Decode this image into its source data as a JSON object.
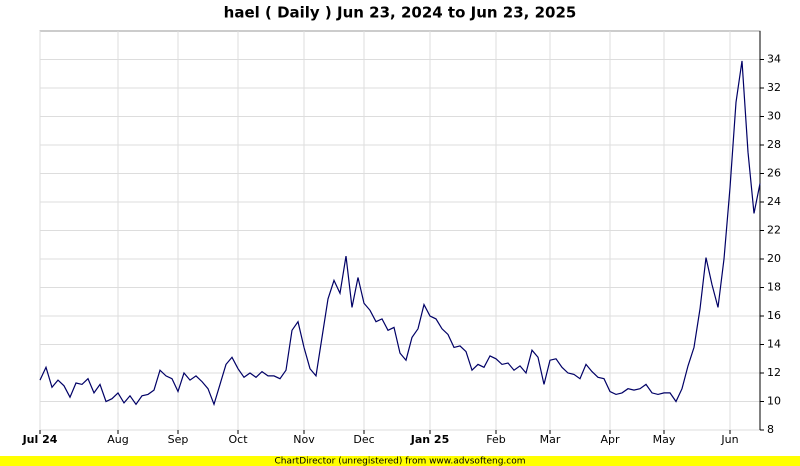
{
  "chart_data": {
    "type": "line",
    "title": "hael ( Daily ) Jun 23, 2024 to Jun 23, 2025",
    "footer": "ChartDirector (unregistered) from www.advsofteng.com",
    "categories": [
      "Jul 24",
      null,
      null,
      null,
      null,
      null,
      null,
      null,
      null,
      null,
      null,
      null,
      null,
      "Aug",
      null,
      null,
      null,
      null,
      null,
      null,
      null,
      null,
      null,
      "Sep",
      null,
      null,
      null,
      null,
      null,
      null,
      null,
      null,
      null,
      "Oct",
      null,
      null,
      null,
      null,
      null,
      null,
      null,
      null,
      null,
      null,
      "Nov",
      null,
      null,
      null,
      null,
      null,
      null,
      null,
      null,
      null,
      "Dec",
      null,
      null,
      null,
      null,
      null,
      null,
      null,
      null,
      null,
      null,
      "Jan 25",
      null,
      null,
      null,
      null,
      null,
      null,
      null,
      null,
      null,
      null,
      "Feb",
      null,
      null,
      null,
      null,
      null,
      null,
      null,
      null,
      "Mar",
      null,
      null,
      null,
      null,
      null,
      null,
      null,
      null,
      null,
      "Apr",
      null,
      null,
      null,
      null,
      null,
      null,
      null,
      null,
      "May",
      null,
      null,
      null,
      null,
      null,
      null,
      null,
      null,
      null,
      null,
      "Jun",
      null,
      null,
      null,
      null,
      null
    ],
    "series": [
      {
        "name": "hael",
        "color": "#000066",
        "values": [
          11.5,
          12.4,
          11.0,
          11.5,
          11.1,
          10.3,
          11.3,
          11.2,
          11.6,
          10.6,
          11.2,
          10.0,
          10.2,
          10.6,
          9.9,
          10.4,
          9.8,
          10.4,
          10.5,
          10.8,
          12.2,
          11.8,
          11.6,
          10.7,
          12.0,
          11.5,
          11.8,
          11.4,
          10.9,
          9.8,
          11.2,
          12.6,
          13.1,
          12.3,
          11.7,
          12.0,
          11.7,
          12.1,
          11.8,
          11.8,
          11.6,
          12.2,
          15.0,
          15.6,
          13.8,
          12.3,
          11.8,
          14.5,
          17.2,
          18.5,
          17.6,
          20.2,
          16.6,
          18.7,
          16.9,
          16.4,
          15.6,
          15.8,
          15.0,
          15.2,
          13.4,
          12.9,
          14.5,
          15.1,
          16.8,
          16.0,
          15.8,
          15.1,
          14.7,
          13.8,
          13.9,
          13.5,
          12.2,
          12.6,
          12.4,
          13.2,
          13.0,
          12.6,
          12.7,
          12.2,
          12.5,
          12.0,
          13.6,
          13.1,
          11.2,
          12.9,
          13.0,
          12.4,
          12.0,
          11.9,
          11.6,
          12.6,
          12.1,
          11.7,
          11.6,
          10.7,
          10.5,
          10.6,
          10.9,
          10.8,
          10.9,
          11.2,
          10.6,
          10.5,
          10.6,
          10.6,
          10.0,
          10.9,
          12.5,
          13.8,
          16.5,
          20.1,
          18.2,
          16.6,
          20.0,
          25.0,
          31.0,
          33.9,
          27.5,
          23.2,
          25.3
        ]
      }
    ],
    "ylim": [
      8,
      36
    ],
    "yticks": [
      8,
      10,
      12,
      14,
      16,
      18,
      20,
      22,
      24,
      26,
      28,
      30,
      32,
      34
    ],
    "grid": true
  }
}
